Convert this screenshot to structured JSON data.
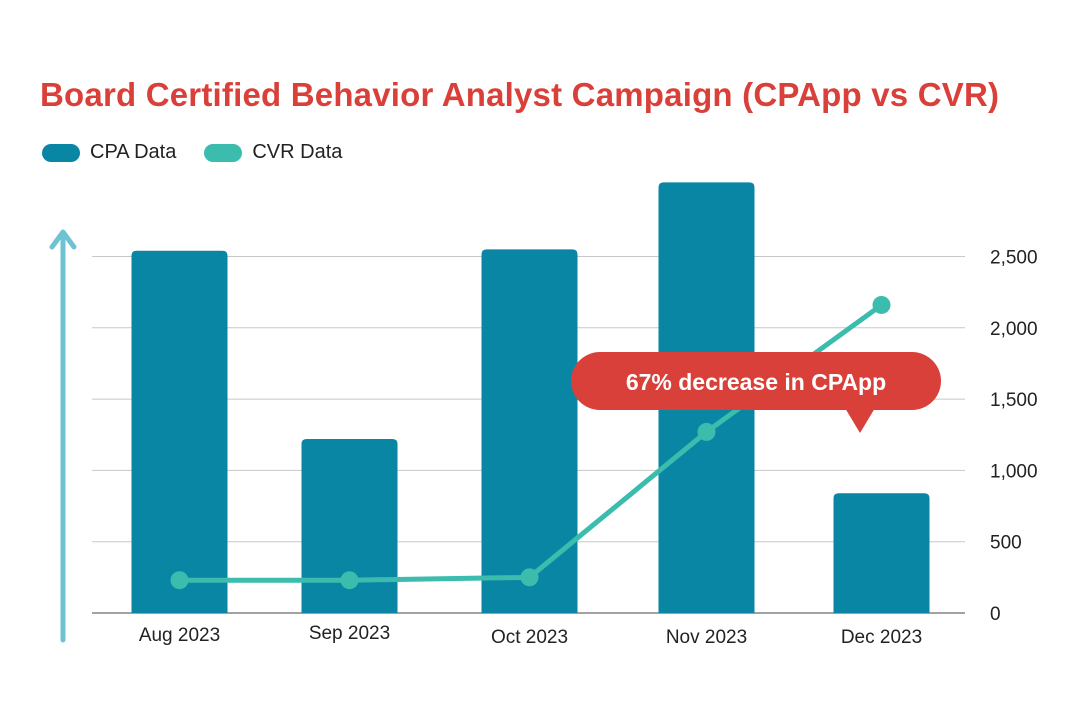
{
  "title": "Board Certified Behavior Analyst Campaign (CPApp vs CVR)",
  "colors": {
    "title": "#d9403a",
    "bar": "#0a86a5",
    "line": "#3bbcad",
    "arrow": "#6ec3d3",
    "callout": "#d9403a",
    "grid": "#c8c8c8"
  },
  "legend": [
    {
      "label": "CPA Data",
      "color": "#0a86a5"
    },
    {
      "label": "CVR Data",
      "color": "#3bbcad"
    }
  ],
  "callout": {
    "text": "67% decrease in CPApp"
  },
  "chart_data": {
    "type": "bar",
    "categories": [
      "Aug 2023",
      "Sep 2023",
      "Oct 2023",
      "Nov 2023",
      "Dec 2023"
    ],
    "series": [
      {
        "name": "CPA Data",
        "type": "bar",
        "values": [
          2540,
          1220,
          2550,
          3020,
          840
        ]
      },
      {
        "name": "CVR Data",
        "type": "line",
        "values": [
          230,
          230,
          250,
          1270,
          2160
        ]
      }
    ],
    "y_ticks": [
      "0",
      "500",
      "1,000",
      "1,500",
      "2,000",
      "2,500"
    ],
    "y_tick_values": [
      0,
      500,
      1000,
      1500,
      2000,
      2500
    ],
    "ylim": [
      0,
      3050
    ],
    "y_axis_side": "right",
    "grid": true,
    "legend_position": "top-left",
    "xlabel": "",
    "ylabel": ""
  }
}
